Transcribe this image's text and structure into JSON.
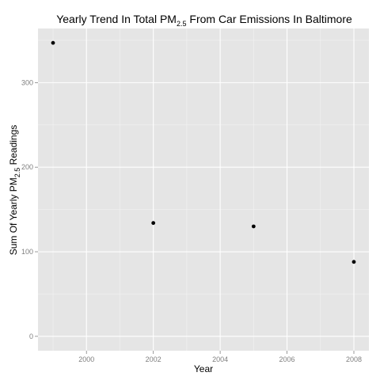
{
  "chart_data": {
    "type": "scatter",
    "title": {
      "prefix": "Yearly Trend In Total PM",
      "subscript": "2.5",
      "suffix": " From Car Emissions In Baltimore"
    },
    "xlabel": "Year",
    "ylabel": {
      "prefix": "Sum Of Yearly PM",
      "subscript": "2.5",
      "suffix": " Readings"
    },
    "x_ticks": [
      2000,
      2002,
      2004,
      2006,
      2008
    ],
    "y_ticks": [
      0,
      100,
      200,
      300
    ],
    "xlim": [
      1998.55,
      2008.45
    ],
    "ylim": [
      -17,
      364
    ],
    "grid": true,
    "legend": "none",
    "points": [
      {
        "x": 1999,
        "y": 347
      },
      {
        "x": 2002,
        "y": 134
      },
      {
        "x": 2005,
        "y": 130
      },
      {
        "x": 2008,
        "y": 88
      }
    ],
    "colors": {
      "panel_background": "#e5e5e5",
      "grid_major": "#ffffff",
      "grid_minor": "#f2f2f2",
      "point": "#000000",
      "tick_label": "#7f7f7f"
    }
  }
}
